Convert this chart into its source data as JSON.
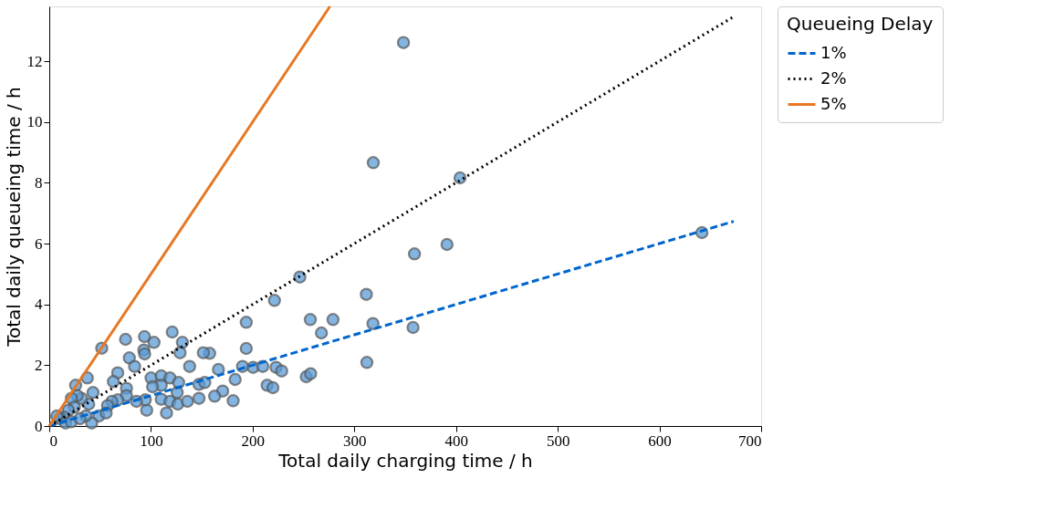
{
  "chart_data": {
    "type": "scatter",
    "xlabel": "Total daily charging time / h",
    "ylabel": "Total daily queueing time / h",
    "legend_title": "Queueing Delay",
    "legend": "right",
    "grid": false,
    "xlim": [
      0,
      700
    ],
    "ylim": [
      0,
      13.8
    ],
    "xticks": [
      0,
      100,
      200,
      300,
      400,
      500,
      600,
      700
    ],
    "yticks": [
      0,
      2,
      4,
      6,
      8,
      10,
      12
    ],
    "series": [
      {
        "color": "#5b9bd5",
        "marker": "circle",
        "x": [
          348.3,
          318.6,
          403.9,
          246.4,
          221.4,
          359.1,
          391.1,
          311.8,
          641.8,
          193.7,
          256.7,
          279,
          267.6,
          318.3,
          357.7,
          193.7,
          312.3,
          157.7,
          166.3,
          190,
          200.5,
          209.9,
          223,
          228.5,
          182.8,
          170.5,
          162.6,
          180.8,
          214.2,
          219.9,
          252.7,
          257,
          51.6,
          75,
          93.6,
          120.9,
          130.9,
          93,
          93.8,
          103,
          78.7,
          83.9,
          128.6,
          138,
          151.5,
          67.3,
          63,
          75.9,
          100.1,
          110.1,
          118.7,
          127.2,
          110.1,
          101.6,
          125.8,
          147.2,
          152.9,
          147.2,
          110.1,
          118.7,
          126.4,
          135.8,
          95.8,
          115.3,
          94.4,
          85.8,
          75.9,
          67.3,
          61.6,
          57.3,
          48.8,
          55.9,
          38.8,
          41.7,
          35.9,
          31.7,
          25.9,
          37.4,
          43,
          27.4,
          21.7,
          24.6,
          18.8,
          14.5,
          10.3,
          7.4,
          16,
          21.7,
          30.2
        ],
        "values": [
          12.61,
          8.66,
          8.16,
          4.9,
          4.13,
          5.66,
          5.97,
          4.33,
          6.36,
          3.41,
          3.5,
          3.5,
          3.06,
          3.37,
          3.24,
          2.55,
          2.09,
          2.39,
          1.86,
          1.96,
          1.93,
          1.96,
          1.93,
          1.81,
          1.53,
          1.15,
          0.98,
          0.83,
          1.34,
          1.26,
          1.62,
          1.72,
          2.56,
          2.85,
          2.94,
          3.09,
          2.75,
          2.5,
          2.37,
          2.75,
          2.24,
          1.96,
          2.41,
          1.96,
          2.41,
          1.75,
          1.46,
          1.24,
          1.58,
          1.65,
          1.58,
          1.43,
          1.34,
          1.29,
          1.1,
          1.37,
          1.43,
          0.91,
          0.88,
          0.81,
          0.72,
          0.81,
          0.52,
          0.43,
          0.86,
          0.81,
          1.0,
          0.86,
          0.81,
          0.67,
          0.33,
          0.43,
          0.72,
          0.1,
          0.33,
          0.91,
          1.34,
          1.58,
          1.1,
          1.0,
          0.91,
          0.62,
          0.52,
          0.29,
          0.24,
          0.33,
          0.1,
          0.14,
          0.24
        ]
      },
      {
        "type": "line",
        "name": "1%",
        "color": "#0066cc",
        "line_style": "dashed",
        "x": [
          0,
          673
        ],
        "values": [
          0,
          6.73
        ]
      },
      {
        "type": "line",
        "name": "2%",
        "color": "#000000",
        "line_style": "dotted",
        "x": [
          0,
          673
        ],
        "values": [
          0,
          13.46
        ]
      },
      {
        "type": "line",
        "name": "5%",
        "color": "#e87722",
        "line_style": "solid",
        "x": [
          0,
          276
        ],
        "values": [
          0,
          13.8
        ]
      }
    ]
  }
}
